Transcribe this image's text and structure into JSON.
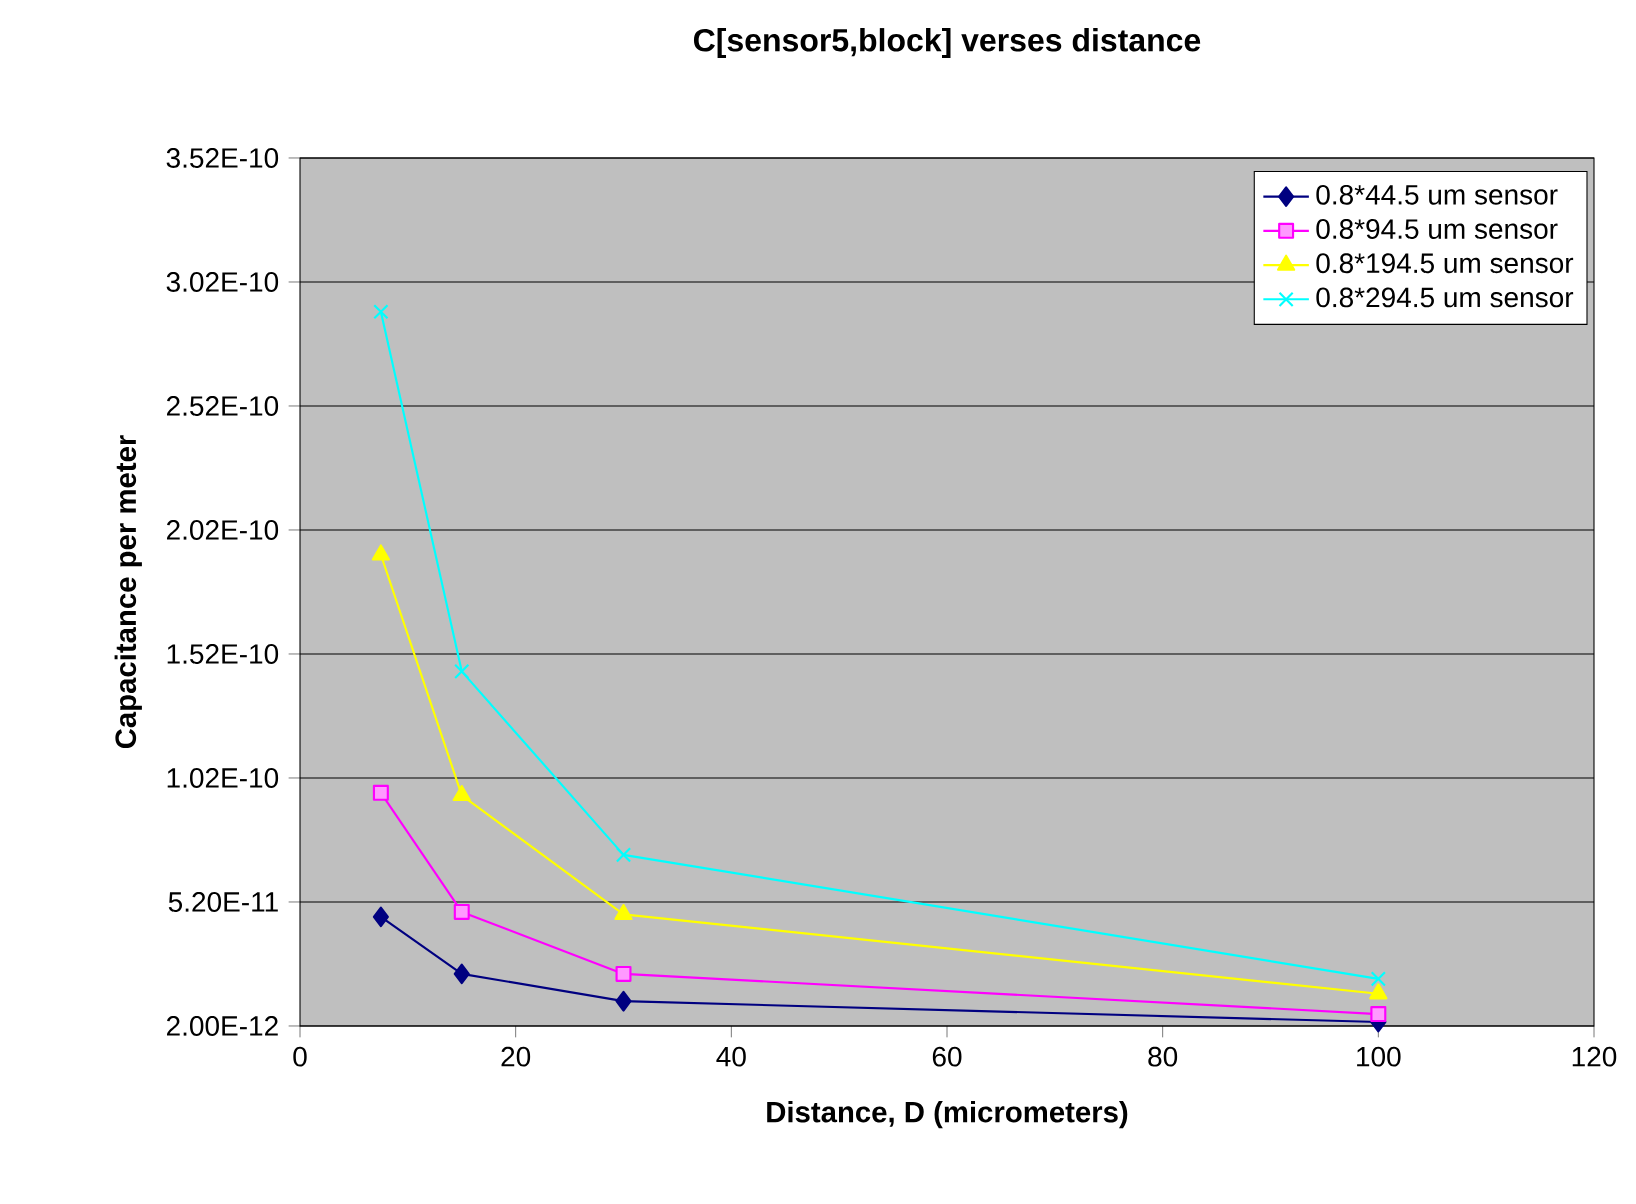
{
  "chart_data": {
    "type": "line",
    "title": "C[sensor5,block] verses distance",
    "xlabel": "Distance, D (micrometers)",
    "ylabel": "Capacitance per meter",
    "xlim": [
      0,
      120
    ],
    "xticks": [
      0,
      20,
      40,
      60,
      80,
      100,
      120
    ],
    "ylim": [
      2e-12,
      3.52e-10
    ],
    "yticks": [
      {
        "value": 2e-12,
        "label": "2.00E-12"
      },
      {
        "value": 5.2e-11,
        "label": "5.20E-11"
      },
      {
        "value": 1.02e-10,
        "label": "1.02E-10"
      },
      {
        "value": 1.52e-10,
        "label": "1.52E-10"
      },
      {
        "value": 2.02e-10,
        "label": "2.02E-10"
      },
      {
        "value": 2.52e-10,
        "label": "2.52E-10"
      },
      {
        "value": 3.02e-10,
        "label": "3.02E-10"
      },
      {
        "value": 3.52e-10,
        "label": "3.52E-10"
      }
    ],
    "grid": "y",
    "legend": "top right",
    "x": [
      7.5,
      15,
      30,
      100
    ],
    "series": [
      {
        "name": "0.8*44.5 um sensor",
        "color": "#000080",
        "marker": "diamond",
        "values": [
          4.6e-11,
          2.3e-11,
          1.2e-11,
          3.6e-12
        ]
      },
      {
        "name": "0.8*94.5 um sensor",
        "color": "#ff00ff",
        "marker": "square",
        "values": [
          9.6e-11,
          4.8e-11,
          2.3e-11,
          6.8e-12
        ]
      },
      {
        "name": "0.8*194.5 um sensor",
        "color": "#ffff00",
        "marker": "triangle",
        "values": [
          1.92e-10,
          9.5e-11,
          4.7e-11,
          1.5e-11
        ]
      },
      {
        "name": "0.8*294.5 um sensor",
        "color": "#00ffff",
        "marker": "cross",
        "values": [
          2.9e-10,
          1.45e-10,
          7.1e-11,
          2.1e-11
        ]
      }
    ]
  }
}
